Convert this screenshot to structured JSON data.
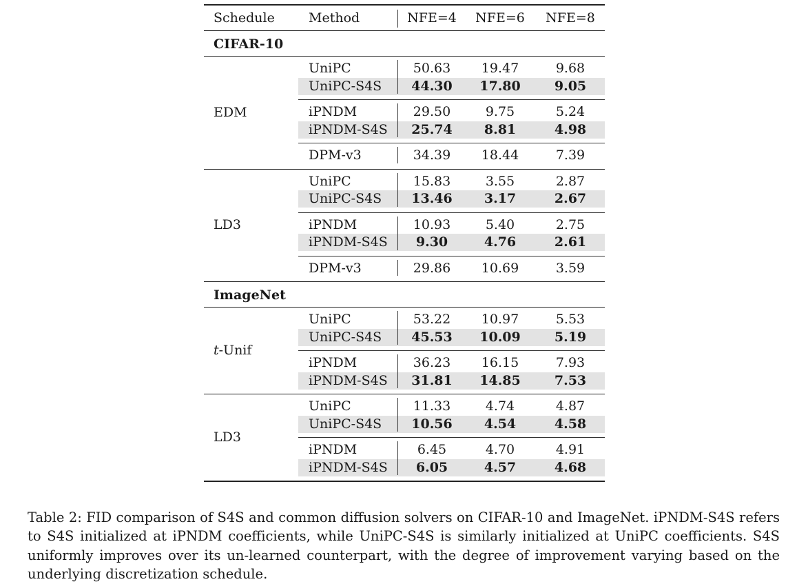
{
  "table": {
    "headers": {
      "schedule": "Schedule",
      "method": "Method",
      "nfe4": "NFE=4",
      "nfe6": "NFE=6",
      "nfe8": "NFE=8"
    },
    "sections": [
      {
        "dataset": "CIFAR-10",
        "schedules": [
          {
            "name": "EDM",
            "groups": [
              [
                {
                  "method": "UniPC",
                  "values": [
                    "50.63",
                    "19.47",
                    "9.68"
                  ],
                  "highlight": false
                },
                {
                  "method": "UniPC-S4S",
                  "values": [
                    "44.30",
                    "17.80",
                    "9.05"
                  ],
                  "highlight": true
                }
              ],
              [
                {
                  "method": "iPNDM",
                  "values": [
                    "29.50",
                    "9.75",
                    "5.24"
                  ],
                  "highlight": false
                },
                {
                  "method": "iPNDM-S4S",
                  "values": [
                    "25.74",
                    "8.81",
                    "4.98"
                  ],
                  "highlight": true
                }
              ],
              [
                {
                  "method": "DPM-v3",
                  "values": [
                    "34.39",
                    "18.44",
                    "7.39"
                  ],
                  "highlight": false
                }
              ]
            ]
          },
          {
            "name": "LD3",
            "groups": [
              [
                {
                  "method": "UniPC",
                  "values": [
                    "15.83",
                    "3.55",
                    "2.87"
                  ],
                  "highlight": false
                },
                {
                  "method": "UniPC-S4S",
                  "values": [
                    "13.46",
                    "3.17",
                    "2.67"
                  ],
                  "highlight": true
                }
              ],
              [
                {
                  "method": "iPNDM",
                  "values": [
                    "10.93",
                    "5.40",
                    "2.75"
                  ],
                  "highlight": false
                },
                {
                  "method": "iPNDM-S4S",
                  "values": [
                    "9.30",
                    "4.76",
                    "2.61"
                  ],
                  "highlight": true
                }
              ],
              [
                {
                  "method": "DPM-v3",
                  "values": [
                    "29.86",
                    "10.69",
                    "3.59"
                  ],
                  "highlight": false
                }
              ]
            ]
          }
        ]
      },
      {
        "dataset": "ImageNet",
        "schedules": [
          {
            "name": "t-Unif",
            "groups": [
              [
                {
                  "method": "UniPC",
                  "values": [
                    "53.22",
                    "10.97",
                    "5.53"
                  ],
                  "highlight": false
                },
                {
                  "method": "UniPC-S4S",
                  "values": [
                    "45.53",
                    "10.09",
                    "5.19"
                  ],
                  "highlight": true
                }
              ],
              [
                {
                  "method": "iPNDM",
                  "values": [
                    "36.23",
                    "16.15",
                    "7.93"
                  ],
                  "highlight": false
                },
                {
                  "method": "iPNDM-S4S",
                  "values": [
                    "31.81",
                    "14.85",
                    "7.53"
                  ],
                  "highlight": true
                }
              ]
            ]
          },
          {
            "name": "LD3",
            "groups": [
              [
                {
                  "method": "UniPC",
                  "values": [
                    "11.33",
                    "4.74",
                    "4.87"
                  ],
                  "highlight": false
                },
                {
                  "method": "UniPC-S4S",
                  "values": [
                    "10.56",
                    "4.54",
                    "4.58"
                  ],
                  "highlight": true
                }
              ],
              [
                {
                  "method": "iPNDM",
                  "values": [
                    "6.45",
                    "4.70",
                    "4.91"
                  ],
                  "highlight": false
                },
                {
                  "method": "iPNDM-S4S",
                  "values": [
                    "6.05",
                    "4.57",
                    "4.68"
                  ],
                  "highlight": true
                }
              ]
            ]
          }
        ]
      }
    ]
  },
  "caption": "Table 2: FID comparison of S4S and common diffusion solvers on CIFAR-10 and ImageNet. iPNDM-S4S refers to S4S initialized at iPNDM coefficients, while UniPC-S4S is similarly initialized at UniPC coefficients. S4S uniformly improves over its un-learned counterpart, with the degree of improvement varying based on the underlying discretization schedule."
}
